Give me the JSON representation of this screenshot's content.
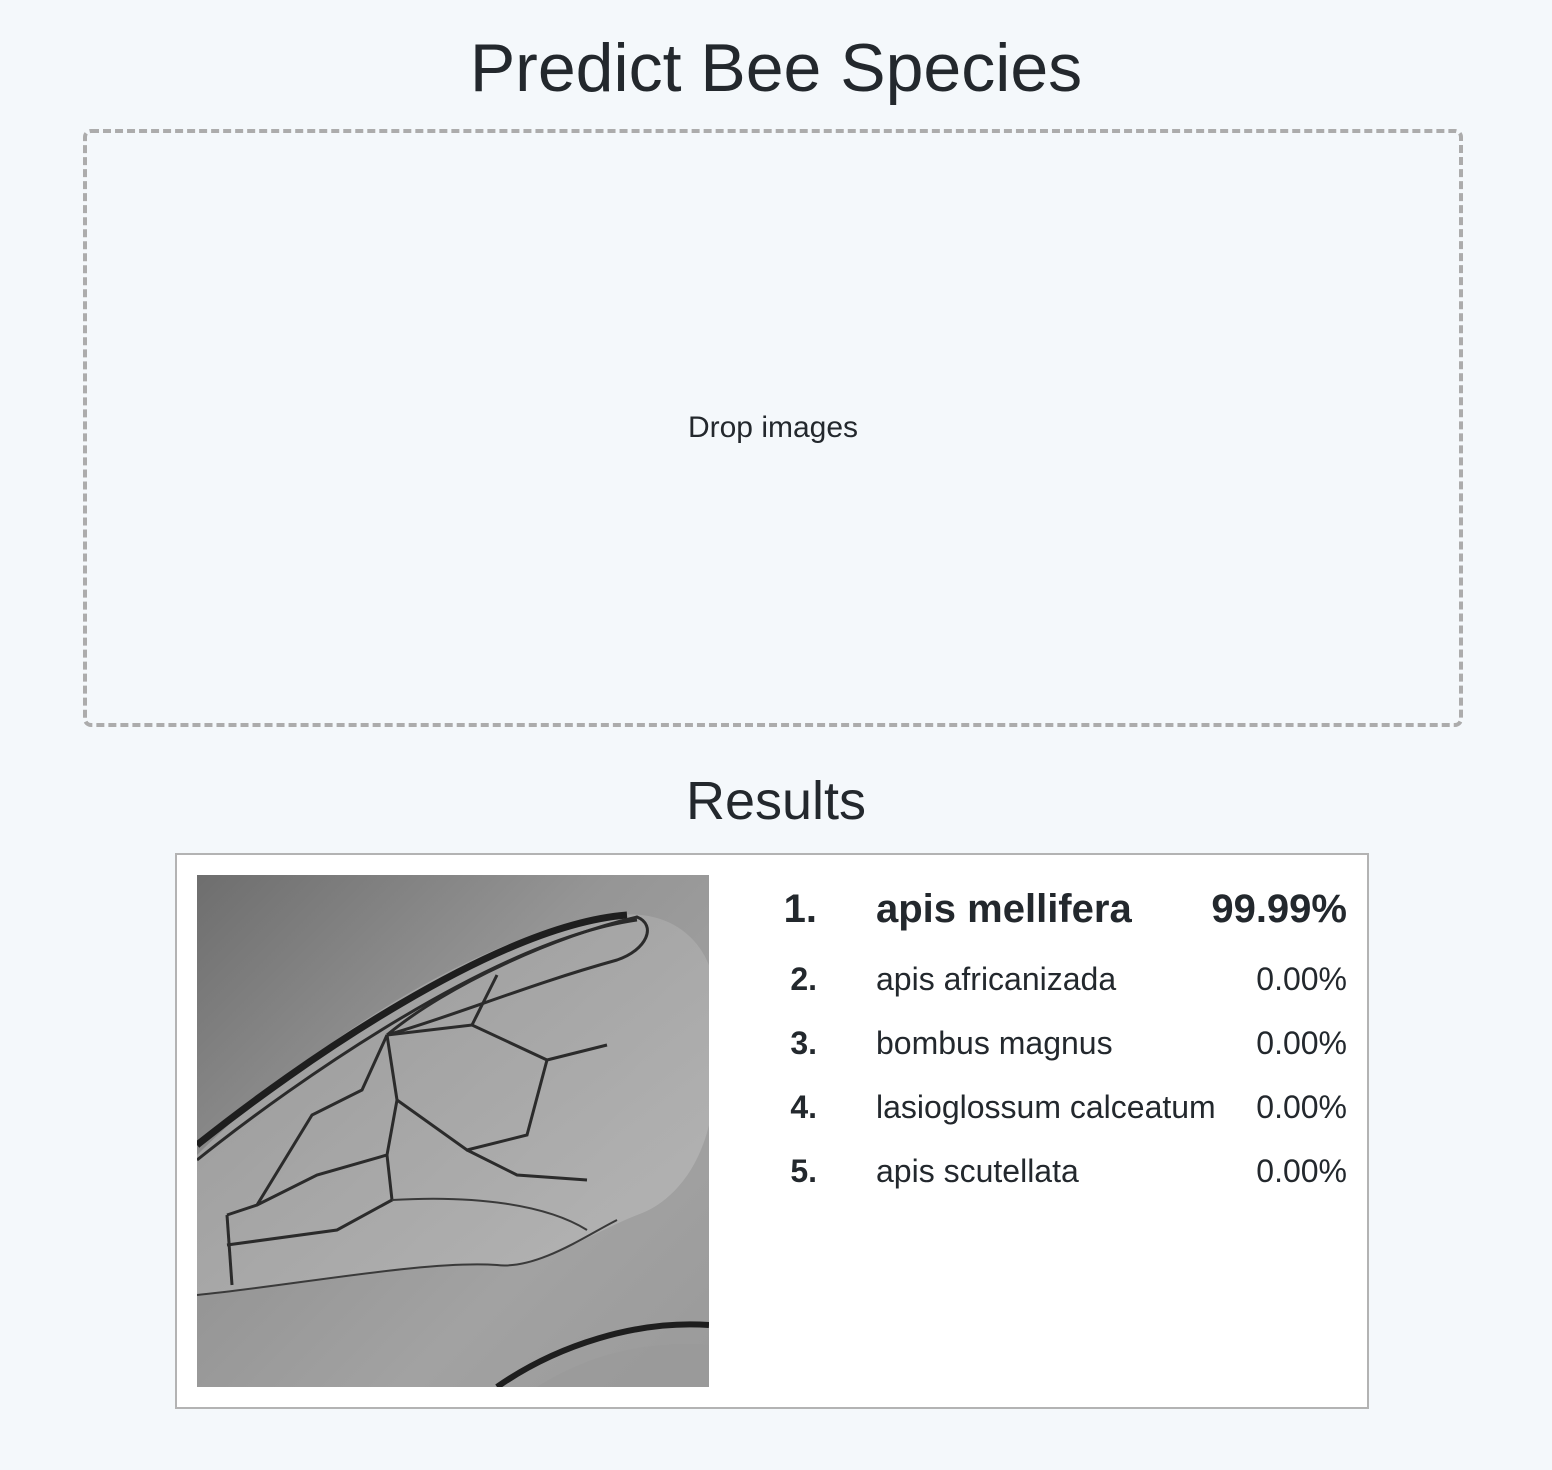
{
  "header": {
    "title": "Predict Bee Species"
  },
  "dropzone": {
    "label": "Drop images"
  },
  "results": {
    "title": "Results",
    "items": [
      {
        "predictions": [
          {
            "rank": "1.",
            "species": "apis mellifera",
            "probability": "99.99%"
          },
          {
            "rank": "2.",
            "species": "apis africanizada",
            "probability": "0.00%"
          },
          {
            "rank": "3.",
            "species": "bombus magnus",
            "probability": "0.00%"
          },
          {
            "rank": "4.",
            "species": "lasioglossum calceatum",
            "probability": "0.00%"
          },
          {
            "rank": "5.",
            "species": "apis scutellata",
            "probability": "0.00%"
          }
        ]
      }
    ]
  }
}
